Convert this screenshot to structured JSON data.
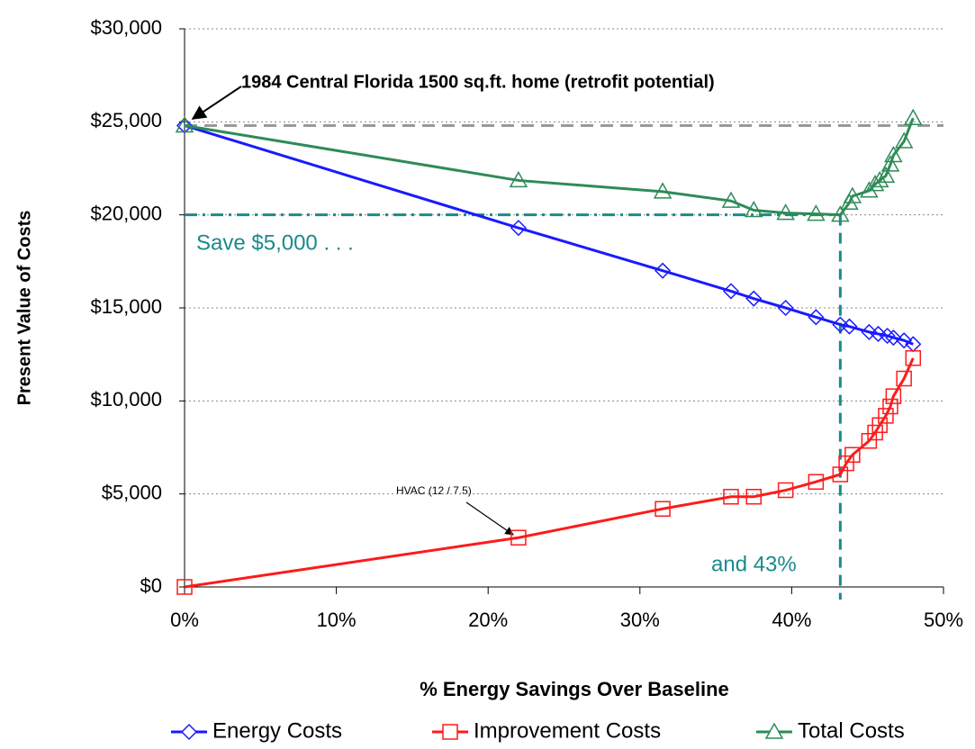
{
  "chart_data": {
    "type": "line",
    "ylabel": "Present Value of Costs",
    "xlabel": "% Energy Savings Over Baseline",
    "annotations": [
      "1984 Central Florida 1500 sq.ft. home (retrofit potential)",
      "Save $5,000 . . .",
      "and 43%",
      "HVAC (12 / 7.5)"
    ],
    "xlim": [
      0,
      50
    ],
    "xticks": [
      {
        "value": 0,
        "label": "0%"
      },
      {
        "value": 10,
        "label": "10%"
      },
      {
        "value": 20,
        "label": "20%"
      },
      {
        "value": 30,
        "label": "30%"
      },
      {
        "value": 40,
        "label": "40%"
      },
      {
        "value": 50,
        "label": "50%"
      }
    ],
    "ylim": [
      0,
      30000
    ],
    "yticks": [
      {
        "value": 0,
        "label": "$0"
      },
      {
        "value": 5000,
        "label": "$5,000"
      },
      {
        "value": 10000,
        "label": "$10,000"
      },
      {
        "value": 15000,
        "label": "$15,000"
      },
      {
        "value": 20000,
        "label": "$20,000"
      },
      {
        "value": 25000,
        "label": "$25,000"
      },
      {
        "value": 30000,
        "label": "$30,000"
      }
    ],
    "grid": true,
    "legend": "bottom",
    "reference": {
      "baseline": 24800,
      "target_x": 43.2,
      "target_y": 20000
    },
    "series": [
      {
        "name": "Energy Costs",
        "color": "#1a1aff",
        "marker": "diamond",
        "x": [
          0,
          22,
          31.5,
          36,
          37.5,
          39.6,
          41.6,
          43.2,
          43.8,
          45.1,
          45.7,
          46.3,
          46.7,
          47.4,
          48
        ],
        "values": [
          24800,
          19300,
          17000,
          15900,
          15500,
          15000,
          14500,
          14100,
          14000,
          13700,
          13600,
          13500,
          13400,
          13250,
          13050
        ]
      },
      {
        "name": "Improvement Costs",
        "color": "#ff1a1a",
        "marker": "square",
        "x": [
          0,
          22,
          31.5,
          36,
          37.5,
          39.6,
          41.6,
          43.2,
          43.6,
          44,
          45.1,
          45.5,
          45.8,
          46.2,
          46.5,
          46.7,
          47.4,
          48
        ],
        "values": [
          0,
          2650,
          4200,
          4850,
          4850,
          5200,
          5650,
          6050,
          6650,
          7100,
          7850,
          8300,
          8700,
          9200,
          9700,
          10250,
          11200,
          12300
        ]
      },
      {
        "name": "Total Costs",
        "color": "#2e8b57",
        "marker": "triangle",
        "x": [
          0,
          22,
          31.5,
          36,
          37.5,
          39.6,
          41.6,
          43.2,
          43.8,
          44,
          45.1,
          45.5,
          45.8,
          46.2,
          46.5,
          46.7,
          47.4,
          48
        ],
        "values": [
          24800,
          21850,
          21250,
          20750,
          20250,
          20100,
          20050,
          20000,
          20650,
          21000,
          21300,
          21650,
          21850,
          22100,
          22700,
          23200,
          23950,
          25200
        ]
      }
    ]
  }
}
